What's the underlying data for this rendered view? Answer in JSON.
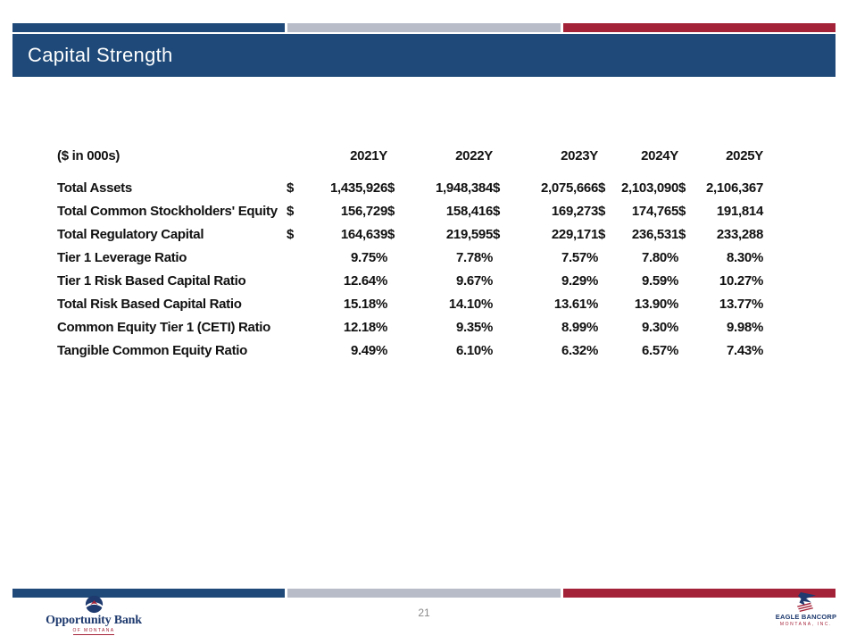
{
  "slide": {
    "title": "Capital Strength",
    "page_number": "21"
  },
  "table": {
    "units_label": "($ in 000s)",
    "dollar_sign": "$",
    "years": [
      "2021Y",
      "2022Y",
      "2023Y",
      "2024Y",
      "2025Y"
    ],
    "rows": [
      {
        "label": "Total Assets",
        "dollar": true,
        "values": [
          "1,435,926",
          "1,948,384",
          "2,075,666",
          "2,103,090",
          "2,106,367"
        ]
      },
      {
        "label": "Total Common Stockholders' Equity",
        "dollar": true,
        "values": [
          "156,729",
          "158,416",
          "169,273",
          "174,765",
          "191,814"
        ]
      },
      {
        "label": "Total Regulatory Capital",
        "dollar": true,
        "values": [
          "164,639",
          "219,595",
          "229,171",
          "236,531",
          "233,288"
        ]
      },
      {
        "label": "Tier 1 Leverage Ratio",
        "dollar": false,
        "values": [
          "9.75%",
          "7.78%",
          "7.57%",
          "7.80%",
          "8.30%"
        ]
      },
      {
        "label": "Tier 1 Risk Based Capital Ratio",
        "dollar": false,
        "values": [
          "12.64%",
          "9.67%",
          "9.29%",
          "9.59%",
          "10.27%"
        ]
      },
      {
        "label": "Total Risk Based Capital Ratio",
        "dollar": false,
        "values": [
          "15.18%",
          "14.10%",
          "13.61%",
          "13.90%",
          "13.77%"
        ]
      },
      {
        "label": "Common Equity Tier 1 (CETI) Ratio",
        "dollar": false,
        "values": [
          "12.18%",
          "9.35%",
          "8.99%",
          "9.30%",
          "9.98%"
        ]
      },
      {
        "label": "Tangible Common Equity Ratio",
        "dollar": false,
        "values": [
          "9.49%",
          "6.10%",
          "6.32%",
          "6.57%",
          "7.43%"
        ]
      }
    ]
  },
  "footer": {
    "opportunity_bank": {
      "name": "Opportunity Bank",
      "subtitle": "OF MONTANA"
    },
    "eagle_bancorp": {
      "name": "EAGLE BANCORP",
      "subtitle": "MONTANA, INC."
    }
  },
  "colors": {
    "navy": "#1E4978",
    "red": "#A42238",
    "gray": "#B7BCC8"
  }
}
